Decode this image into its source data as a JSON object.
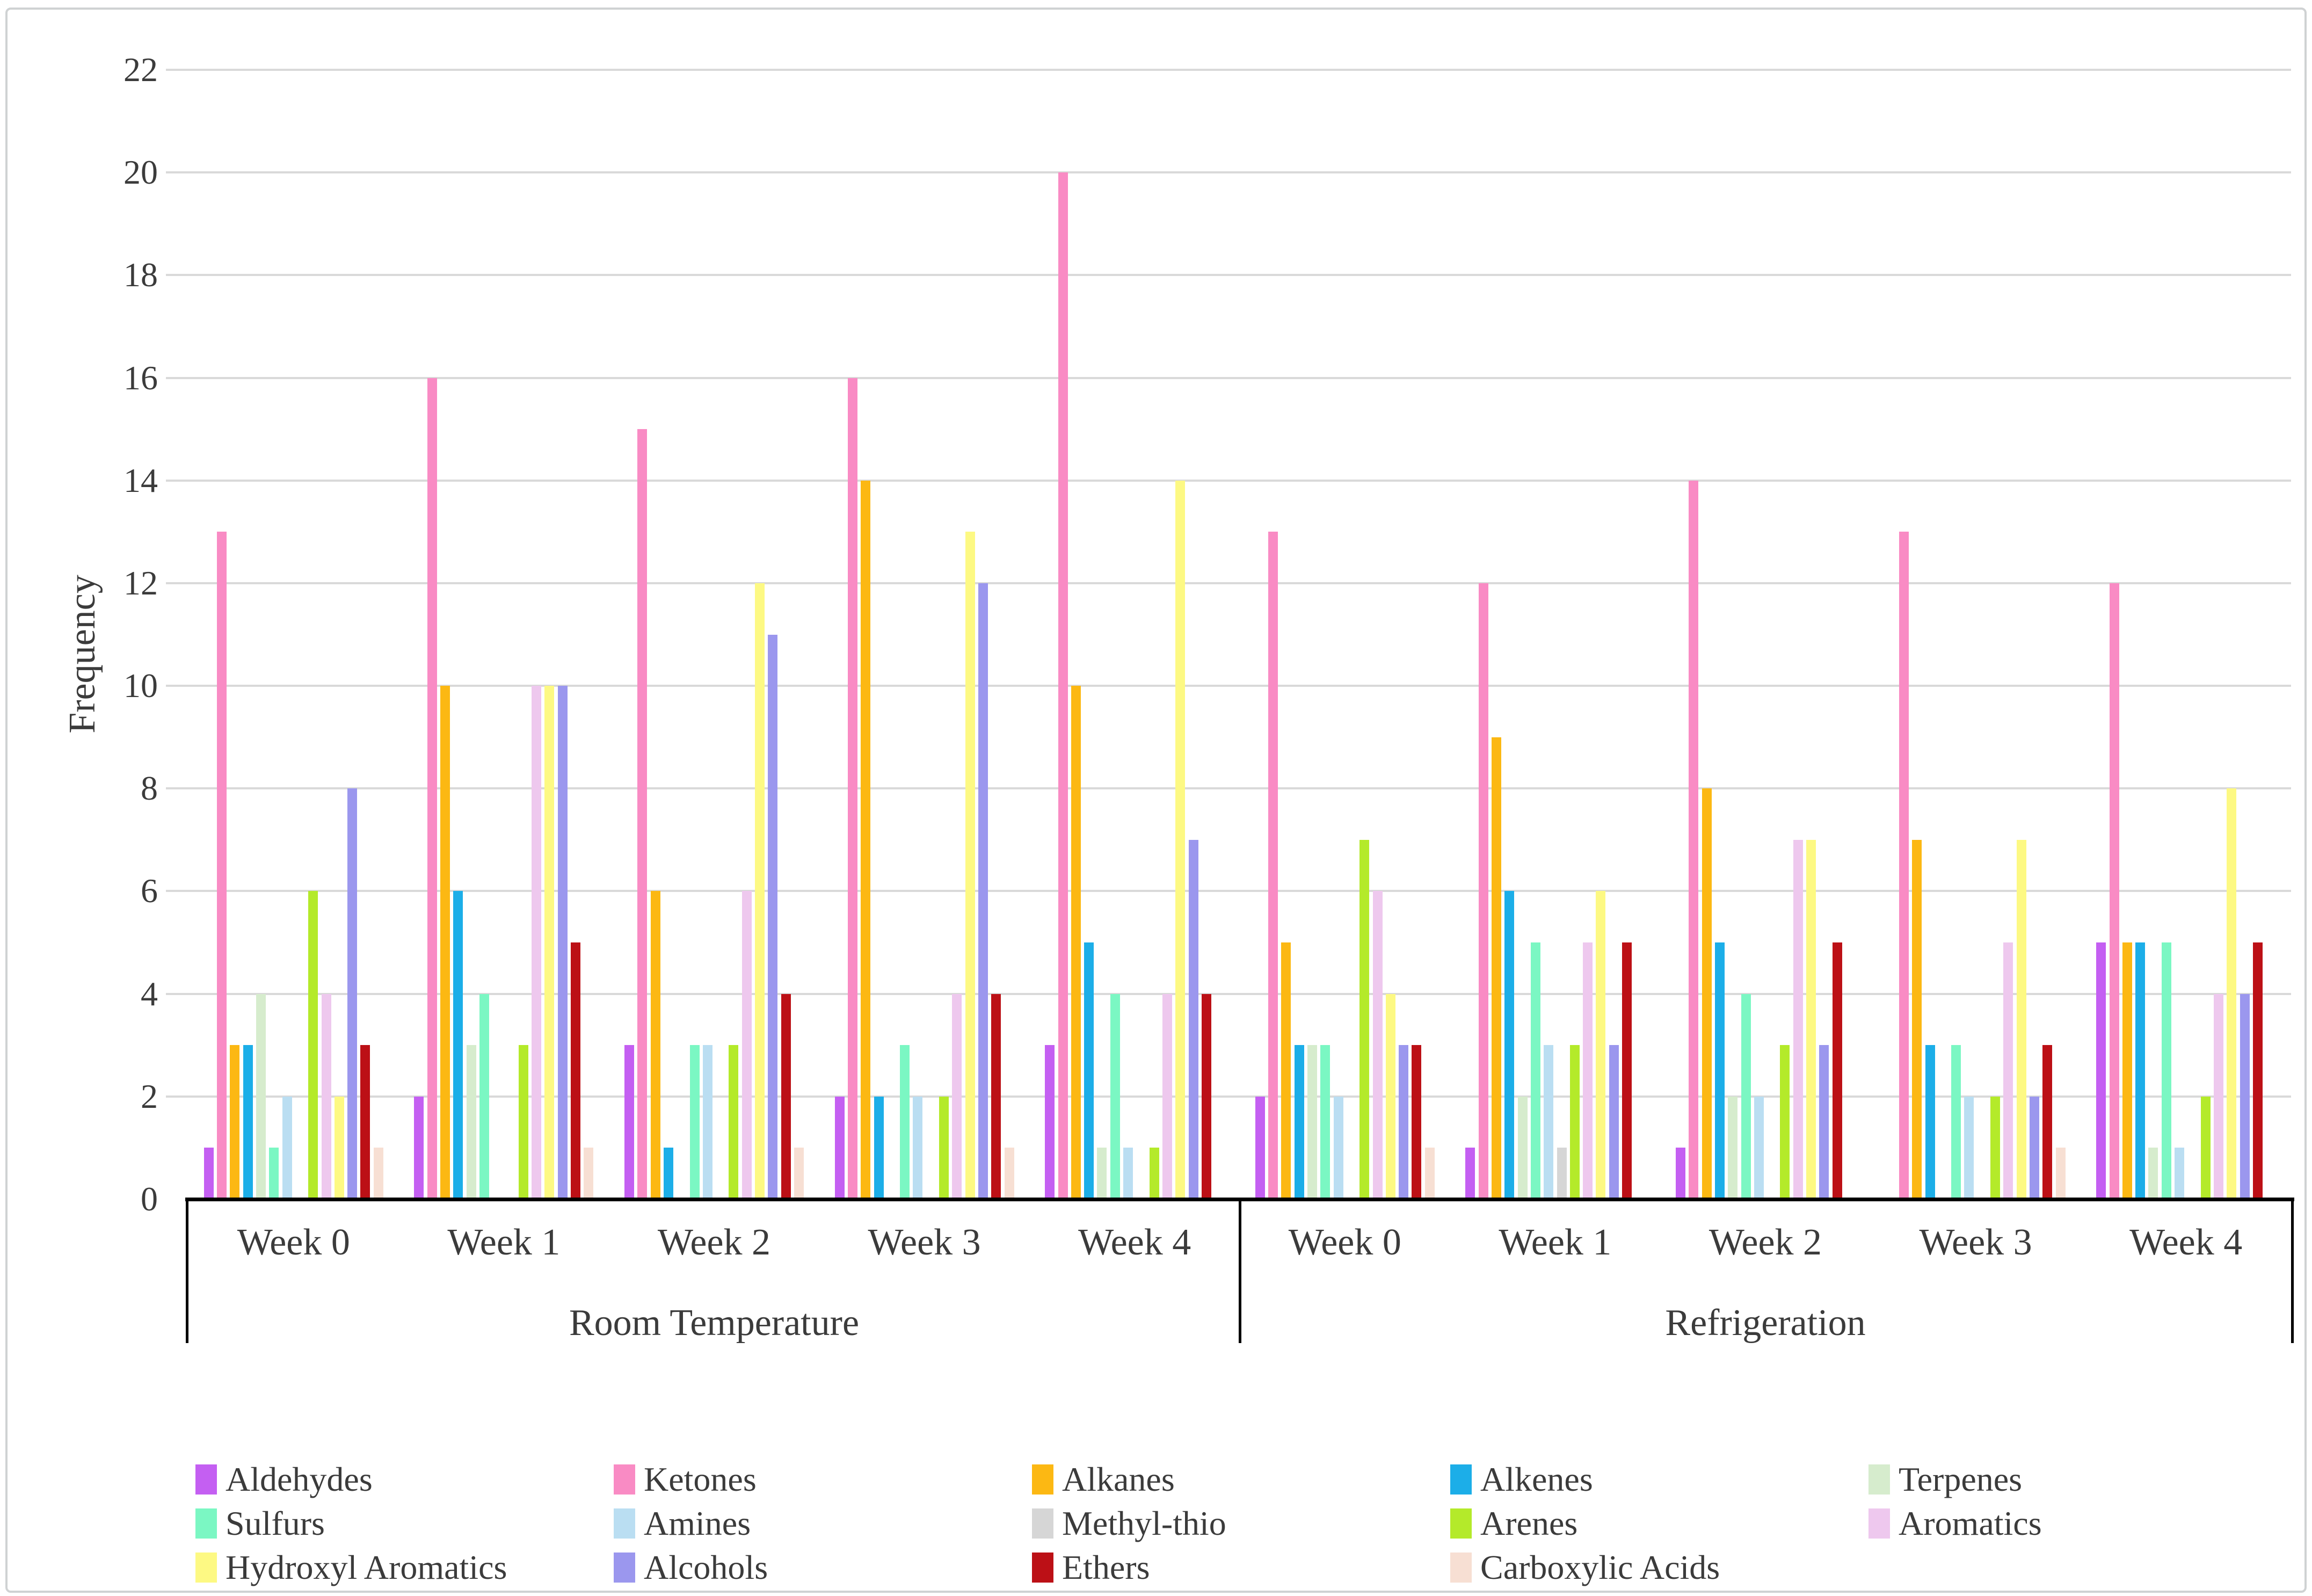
{
  "figure": {
    "background": "#ffffff",
    "border_color": "#cfd2d3",
    "text_color": "#3b3b3b"
  },
  "chart_data": {
    "type": "bar",
    "title": "",
    "xlabel": "",
    "ylabel": "Frequency",
    "ylim": [
      0,
      22
    ],
    "yticks": [
      0,
      2,
      4,
      6,
      8,
      10,
      12,
      14,
      16,
      18,
      20,
      22
    ],
    "grid": "horizontal",
    "gridline_color": "#d9d9d9",
    "axis_line_color": "#000000",
    "legend_position": "bottom",
    "sections": [
      {
        "key": "room_temperature",
        "label": "Room Temperature",
        "categories": [
          "Week 0",
          "Week 1",
          "Week 2",
          "Week 3",
          "Week 4"
        ]
      },
      {
        "key": "refrigeration",
        "label": "Refrigeration",
        "categories": [
          "Week 0",
          "Week 1",
          "Week 2",
          "Week 3",
          "Week 4"
        ]
      }
    ],
    "series": [
      {
        "name": "Aldehydes",
        "color": "#c45ff2",
        "room_temperature": [
          1,
          2,
          3,
          2,
          3
        ],
        "refrigeration": [
          2,
          1,
          1,
          0,
          5
        ]
      },
      {
        "name": "Ketones",
        "color": "#f98bc4",
        "room_temperature": [
          13,
          16,
          15,
          16,
          20
        ],
        "refrigeration": [
          13,
          12,
          14,
          13,
          12
        ]
      },
      {
        "name": "Alkanes",
        "color": "#fcb813",
        "room_temperature": [
          3,
          10,
          6,
          14,
          10
        ],
        "refrigeration": [
          5,
          9,
          8,
          7,
          5
        ]
      },
      {
        "name": "Alkenes",
        "color": "#1caee8",
        "room_temperature": [
          3,
          6,
          1,
          2,
          5
        ],
        "refrigeration": [
          3,
          6,
          5,
          3,
          5
        ]
      },
      {
        "name": "Terpenes",
        "color": "#d6eccd",
        "room_temperature": [
          4,
          3,
          0,
          0,
          1
        ],
        "refrigeration": [
          3,
          2,
          2,
          0,
          1
        ]
      },
      {
        "name": "Sulfurs",
        "color": "#7bf7c3",
        "room_temperature": [
          1,
          4,
          3,
          3,
          4
        ],
        "refrigeration": [
          3,
          5,
          4,
          3,
          5
        ]
      },
      {
        "name": "Amines",
        "color": "#badef2",
        "room_temperature": [
          2,
          0,
          3,
          2,
          1
        ],
        "refrigeration": [
          2,
          3,
          2,
          2,
          1
        ]
      },
      {
        "name": "Methyl-thio",
        "color": "#d6d6d6",
        "room_temperature": [
          0,
          0,
          0,
          0,
          0
        ],
        "refrigeration": [
          0,
          1,
          0,
          0,
          0
        ]
      },
      {
        "name": "Arenes",
        "color": "#b4ea2a",
        "room_temperature": [
          6,
          3,
          3,
          2,
          1
        ],
        "refrigeration": [
          7,
          3,
          3,
          2,
          2
        ]
      },
      {
        "name": "Aromatics",
        "color": "#eec8ee",
        "room_temperature": [
          4,
          10,
          6,
          4,
          4
        ],
        "refrigeration": [
          6,
          5,
          7,
          5,
          4
        ]
      },
      {
        "name": "Hydroxyl Aromatics",
        "color": "#fdf983",
        "room_temperature": [
          2,
          10,
          12,
          13,
          14
        ],
        "refrigeration": [
          4,
          6,
          7,
          7,
          8
        ]
      },
      {
        "name": "Alcohols",
        "color": "#9b97ee",
        "room_temperature": [
          8,
          10,
          11,
          12,
          7
        ],
        "refrigeration": [
          3,
          3,
          3,
          2,
          4
        ]
      },
      {
        "name": "Ethers",
        "color": "#bc1016",
        "room_temperature": [
          3,
          5,
          4,
          4,
          4
        ],
        "refrigeration": [
          3,
          5,
          5,
          3,
          5
        ]
      },
      {
        "name": "Carboxylic Acids",
        "color": "#f7dfd3",
        "room_temperature": [
          1,
          1,
          1,
          1,
          0
        ],
        "refrigeration": [
          1,
          0,
          0,
          1,
          0
        ]
      }
    ]
  }
}
